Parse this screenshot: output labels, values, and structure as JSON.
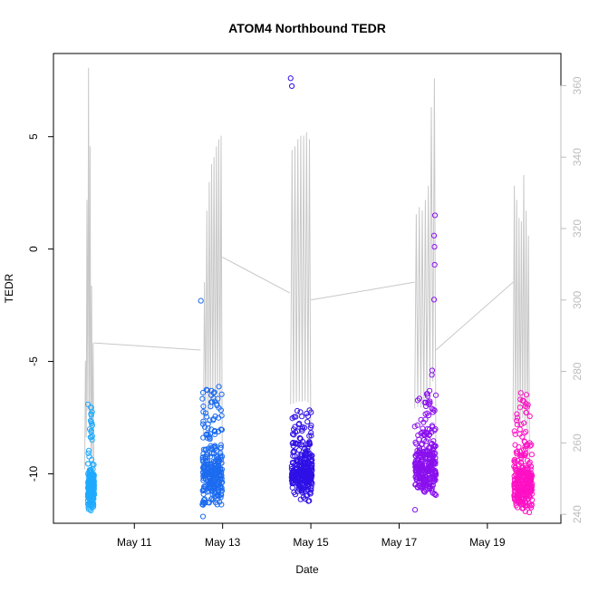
{
  "chart_data": {
    "type": "scatter",
    "title": "ATOM4 Northbound TEDR",
    "xlabel": "Date",
    "ylabel": "TEDR",
    "xlim": [
      "2016-05-09T04:00",
      "2016-05-20T16:00"
    ],
    "ylim": [
      -12.2,
      8.7
    ],
    "y2lim": [
      237.5,
      369
    ],
    "x_ticks": [
      {
        "date": "2016-05-11",
        "label": "May 11"
      },
      {
        "date": "2016-05-13",
        "label": "May 13"
      },
      {
        "date": "2016-05-15",
        "label": "May 15"
      },
      {
        "date": "2016-05-17",
        "label": "May 17"
      },
      {
        "date": "2016-05-19",
        "label": "May 19"
      }
    ],
    "y_ticks": [
      -10,
      -5,
      0,
      5
    ],
    "y2_ticks": [
      240,
      260,
      280,
      300,
      320,
      340,
      360
    ],
    "grid": false,
    "legend": "none",
    "colors": {
      "line": "#c8c8c8",
      "axis": "#000000",
      "axis2": "#bdbdbd"
    },
    "series": [
      {
        "color": "#1eaaff",
        "start": "2016-05-09T22:40",
        "end": "2016-05-10T02:10",
        "n": 200,
        "cluster_low": -11.75,
        "cluster_high": -9.6,
        "max": -6.9,
        "outliers": []
      },
      {
        "color": "#1c6bf0",
        "start": "2016-05-12T13:00",
        "end": "2016-05-12T23:50",
        "n": 300,
        "cluster_low": -11.6,
        "cluster_high": -8.4,
        "max": -6.1,
        "outliers": [
          {
            "x": "2016-05-12T12:10",
            "y": -2.3
          },
          {
            "x": "2016-05-12T13:20",
            "y": -11.9
          }
        ]
      },
      {
        "color": "#2f10e6",
        "start": "2016-05-14T13:30",
        "end": "2016-05-15T00:40",
        "n": 300,
        "cluster_low": -11.3,
        "cluster_high": -8.7,
        "max": -7.1,
        "outliers": [
          {
            "x": "2016-05-14T13:00",
            "y": 7.6
          },
          {
            "x": "2016-05-14T13:40",
            "y": 7.25
          }
        ]
      },
      {
        "color": "#8a10ee",
        "start": "2016-05-17T08:30",
        "end": "2016-05-17T20:00",
        "n": 300,
        "cluster_low": -11.2,
        "cluster_high": -8.3,
        "max": -6.3,
        "outliers": [
          {
            "x": "2016-05-17T08:40",
            "y": -11.6
          },
          {
            "x": "2016-05-17T19:30",
            "y": 1.5
          },
          {
            "x": "2016-05-17T19:00",
            "y": 0.6
          },
          {
            "x": "2016-05-17T19:15",
            "y": 0.1
          },
          {
            "x": "2016-05-17T19:20",
            "y": -0.7
          },
          {
            "x": "2016-05-17T19:00",
            "y": -2.25
          },
          {
            "x": "2016-05-17T18:00",
            "y": -5.4
          },
          {
            "x": "2016-05-17T17:50",
            "y": -5.6
          }
        ]
      },
      {
        "color": "#ff10c4",
        "start": "2016-05-19T14:30",
        "end": "2016-05-20T00:20",
        "n": 300,
        "cluster_low": -11.75,
        "cluster_high": -9.2,
        "max": -6.2,
        "outliers": []
      }
    ],
    "line_series": {
      "axis": "right",
      "segments": [
        {
          "start": "2016-05-09T21:00",
          "end": "2016-05-10T02:00",
          "base": 245,
          "peaks": [
            283,
            328,
            365,
            343,
            304,
            288
          ]
        },
        {
          "start": "2016-05-12T13:30",
          "end": "2016-05-12T23:50",
          "base": 252,
          "peaks": [
            305,
            325,
            333,
            338,
            340,
            343,
            345,
            346
          ]
        },
        {
          "start": "2016-05-14T13:00",
          "end": "2016-05-15T00:00",
          "base": 253,
          "peaks": [
            342,
            343,
            345,
            346,
            346,
            347,
            345
          ]
        },
        {
          "start": "2016-05-17T08:30",
          "end": "2016-05-17T20:00",
          "base": 256,
          "peaks": [
            324,
            326,
            325,
            328,
            332,
            354,
            362
          ]
        },
        {
          "start": "2016-05-19T14:00",
          "end": "2016-05-19T23:00",
          "base": 250,
          "peaks": [
            332,
            328,
            323,
            322,
            335,
            325,
            318
          ]
        }
      ],
      "connectors": [
        {
          "from": "2016-05-10T02:00",
          "to": "2016-05-12T12:00",
          "from_y": 288,
          "to_y": 286
        },
        {
          "from": "2016-05-12T23:50",
          "to": "2016-05-14T12:30",
          "from_y": 312,
          "to_y": 302
        },
        {
          "from": "2016-05-15T00:00",
          "to": "2016-05-17T08:30",
          "from_y": 300,
          "to_y": 305
        },
        {
          "from": "2016-05-17T20:00",
          "to": "2016-05-19T14:00",
          "from_y": 286,
          "to_y": 305
        }
      ]
    }
  }
}
